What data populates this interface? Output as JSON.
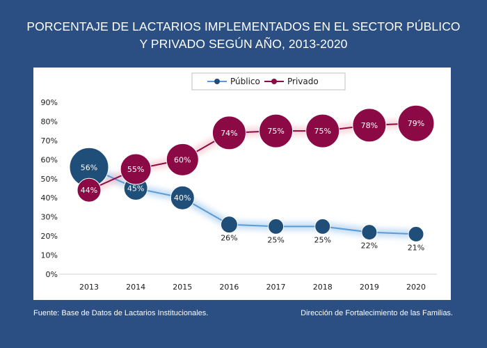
{
  "title_line1": "PORCENTAJE DE LACTARIOS IMPLEMENTADOS EN EL SECTOR PÚBLICO",
  "title_line2": "Y PRIVADO SEGÚN AÑO, 2013-2020",
  "source_left": "Fuente: Base de Datos de Lactarios Institucionales.",
  "source_right": "Dirección de Fortalecimiento de las Familias.",
  "chart_data": {
    "type": "line",
    "categories": [
      "2013",
      "2014",
      "2015",
      "2016",
      "2017",
      "2018",
      "2019",
      "2020"
    ],
    "series": [
      {
        "name": "Público",
        "color": "#1f4e79",
        "values": [
          56,
          45,
          40,
          26,
          25,
          25,
          22,
          21
        ],
        "labels": [
          "56%",
          "45%",
          "40%",
          "26%",
          "25%",
          "25%",
          "22%",
          "21%"
        ]
      },
      {
        "name": "Privado",
        "color": "#8b0a46",
        "values": [
          44,
          55,
          60,
          74,
          75,
          75,
          78,
          79
        ],
        "labels": [
          "44%",
          "55%",
          "60%",
          "74%",
          "75%",
          "75%",
          "78%",
          "79%"
        ]
      }
    ],
    "ylim": [
      0,
      90
    ],
    "yticks": [
      "0%",
      "10%",
      "20%",
      "30%",
      "40%",
      "50%",
      "60%",
      "70%",
      "80%",
      "90%"
    ],
    "legend": "top-center",
    "grid": false
  }
}
